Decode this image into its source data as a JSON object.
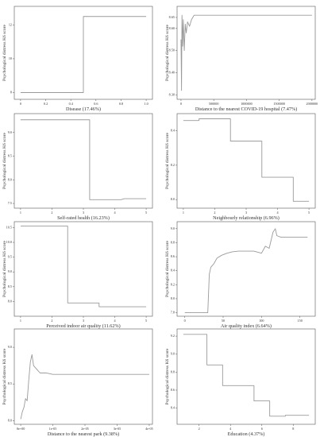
{
  "chart_data": [
    {
      "type": "line",
      "xlabel": "Disease (17.46%)",
      "ylabel": "Psychological distress K6 score",
      "xlim": [
        -0.05,
        1.05
      ],
      "ylim": [
        7.6,
        13.1
      ],
      "x_ticks": [
        0,
        0.2,
        0.4,
        0.6,
        0.8,
        1.0
      ],
      "x_tick_labels": [
        "0",
        "0.2",
        "0.4",
        "0.6",
        "0.8",
        "1.0"
      ],
      "y_ticks": [
        8,
        10,
        12
      ],
      "y_tick_labels": [
        "8",
        "10",
        "12"
      ],
      "series": [
        {
          "x": [
            0,
            0.5,
            0.5,
            1.0
          ],
          "y": [
            8.0,
            8.0,
            12.5,
            12.5
          ]
        }
      ]
    },
    {
      "type": "line",
      "xlabel": "Distance to the nearest COVID-19 hospital (7.47%)",
      "ylabel": "Psychological distress K6 score",
      "xlim": [
        -60000,
        2050000
      ],
      "ylim": [
        8.28,
        8.7
      ],
      "x_ticks": [
        0,
        500000,
        1000000,
        1500000,
        2000000
      ],
      "x_tick_labels": [
        "0",
        "500000",
        "1000000",
        "1500000",
        "2000000"
      ],
      "y_ticks": [
        8.3,
        8.4,
        8.5,
        8.6,
        8.65
      ],
      "y_tick_labels": [
        "8.30",
        "8.40",
        "8.50",
        "8.60",
        "8.65"
      ],
      "series": [
        {
          "x": [
            0,
            8000,
            15000,
            25000,
            35000,
            50000,
            65000,
            80000,
            100000,
            130000,
            160000,
            200000,
            300000,
            2000000
          ],
          "y": [
            8.55,
            8.32,
            8.66,
            8.52,
            8.64,
            8.5,
            8.62,
            8.58,
            8.63,
            8.61,
            8.64,
            8.66,
            8.66,
            8.66
          ]
        }
      ]
    },
    {
      "type": "line",
      "xlabel": "Self-rated health (16.23%)",
      "ylabel": "Psychological distress K6 score",
      "xlim": [
        0.8,
        5.2
      ],
      "ylim": [
        7.4,
        9.4
      ],
      "x_ticks": [
        1,
        2,
        3,
        4,
        5
      ],
      "x_tick_labels": [
        "1",
        "2",
        "3",
        "4",
        "5"
      ],
      "y_ticks": [
        7.5,
        8.0,
        8.5,
        9.0
      ],
      "y_tick_labels": [
        "7.5",
        "8.0",
        "8.5",
        "9.0"
      ],
      "series": [
        {
          "x": [
            1,
            3.2,
            3.2,
            4.2,
            4.3,
            5
          ],
          "y": [
            9.27,
            9.27,
            7.58,
            7.58,
            7.6,
            7.6
          ]
        }
      ]
    },
    {
      "type": "line",
      "xlabel": "Neighbourly relationship (6.96%)",
      "ylabel": "Psychological distress K6 score",
      "xlim": [
        0.8,
        5.2
      ],
      "ylim": [
        7.95,
        8.5
      ],
      "x_ticks": [
        1,
        2,
        3,
        4,
        5
      ],
      "x_tick_labels": [
        "1",
        "2",
        "3",
        "4",
        "5"
      ],
      "y_ticks": [
        8.0,
        8.2,
        8.4
      ],
      "y_tick_labels": [
        "8.0",
        "8.2",
        "8.4"
      ],
      "series": [
        {
          "x": [
            1,
            1.5,
            1.5,
            2.5,
            2.5,
            3.5,
            3.5,
            4.5,
            4.5,
            5
          ],
          "y": [
            8.46,
            8.46,
            8.47,
            8.47,
            8.34,
            8.34,
            8.13,
            8.13,
            7.99,
            7.99
          ]
        }
      ]
    },
    {
      "type": "line",
      "xlabel": "Perceived indoor air quality (11.62%)",
      "ylabel": "Psychological distress K6 score",
      "xlim": [
        0.8,
        5.2
      ],
      "ylim": [
        7.5,
        10.7
      ],
      "x_ticks": [
        1,
        2,
        3,
        4,
        5
      ],
      "x_tick_labels": [
        "1",
        "2",
        "3",
        "4",
        "5"
      ],
      "y_ticks": [
        8.0,
        8.5,
        9.0,
        9.5,
        10.0,
        10.5
      ],
      "y_tick_labels": [
        "8.0",
        "8.5",
        "9.0",
        "9.5",
        "10.0",
        "10.5"
      ],
      "series": [
        {
          "x": [
            1,
            2.5,
            2.5,
            3.5,
            3.5,
            5
          ],
          "y": [
            10.55,
            10.55,
            7.95,
            7.95,
            7.82,
            7.82
          ]
        }
      ]
    },
    {
      "type": "line",
      "xlabel": "Air quality index (6.64%)",
      "ylabel": "Psychological distress K6 score",
      "xlim": [
        -10,
        170
      ],
      "ylim": [
        7.75,
        9.1
      ],
      "x_ticks": [
        0,
        50,
        100,
        150
      ],
      "x_tick_labels": [
        "0",
        "50",
        "100",
        "150"
      ],
      "y_ticks": [
        7.8,
        8.0,
        8.2,
        8.4,
        8.6,
        8.8,
        9.0
      ],
      "y_tick_labels": [
        "7.8",
        "8.0",
        "8.2",
        "8.4",
        "8.6",
        "8.8",
        "9.0"
      ],
      "series": [
        {
          "x": [
            0,
            30,
            32,
            34,
            38,
            42,
            48,
            55,
            62,
            70,
            80,
            90,
            100,
            105,
            110,
            115,
            118,
            120,
            125,
            130,
            160
          ],
          "y": [
            7.8,
            7.8,
            8.35,
            8.45,
            8.5,
            8.58,
            8.62,
            8.65,
            8.67,
            8.68,
            8.68,
            8.68,
            8.65,
            8.75,
            8.72,
            8.95,
            9.0,
            8.9,
            8.88,
            8.88,
            8.88
          ]
        }
      ]
    },
    {
      "type": "line",
      "xlabel": "Distance to the nearest park (9.38%)",
      "ylabel": "Psychological distress K6 score",
      "xlim": [
        -2e-06,
        4.1e-05
      ],
      "ylim": [
        7.95,
        9.25
      ],
      "x_ticks": [
        0,
        1e-05,
        2e-05,
        3e-05,
        4e-05
      ],
      "x_tick_labels": [
        "0e+00",
        "1e-05",
        "2e-05",
        "3e-05",
        "4e-05"
      ],
      "y_ticks": [
        8.0,
        8.5,
        9.0
      ],
      "y_tick_labels": [
        "8.0",
        "8.5",
        "9.0"
      ],
      "series": [
        {
          "x": [
            0,
            5e-07,
            1e-06,
            1.5e-06,
            2e-06,
            2.5e-06,
            3e-06,
            3.5e-06,
            4e-06,
            5e-06,
            6e-06,
            8e-06,
            1e-05,
            1.5e-05,
            2.5e-05,
            4e-05
          ],
          "y": [
            8.02,
            8.12,
            8.18,
            8.3,
            8.27,
            8.55,
            8.8,
            8.9,
            8.75,
            8.7,
            8.65,
            8.65,
            8.63,
            8.63,
            8.63,
            8.63
          ]
        }
      ]
    },
    {
      "type": "line",
      "xlabel": "Education (4.37%)",
      "ylabel": "Psychological distress K6 score",
      "xlim": [
        0.6,
        9.4
      ],
      "ylim": [
        8.22,
        9.28
      ],
      "x_ticks": [
        2,
        4,
        6,
        8
      ],
      "x_tick_labels": [
        "2",
        "4",
        "6",
        "8"
      ],
      "y_ticks": [
        8.4,
        8.6,
        8.8,
        9.0,
        9.2
      ],
      "y_tick_labels": [
        "8.4",
        "8.6",
        "8.8",
        "9.0",
        "9.2"
      ],
      "series": [
        {
          "x": [
            1,
            2.5,
            2.5,
            3.5,
            3.5,
            5.5,
            5.5,
            6.5,
            6.5,
            7.5,
            7.5,
            9
          ],
          "y": [
            9.22,
            9.22,
            8.88,
            8.88,
            8.65,
            8.65,
            8.48,
            8.48,
            8.31,
            8.31,
            8.32,
            8.32
          ]
        }
      ]
    }
  ]
}
